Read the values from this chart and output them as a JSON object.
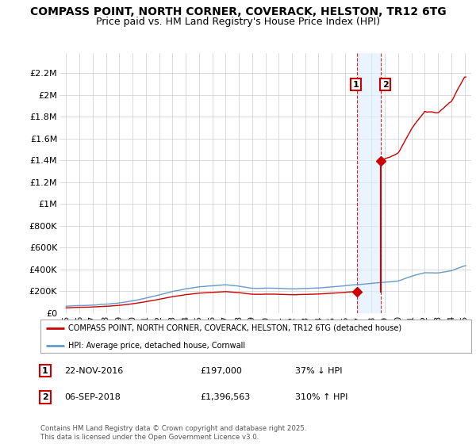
{
  "title": "COMPASS POINT, NORTH CORNER, COVERACK, HELSTON, TR12 6TG",
  "subtitle": "Price paid vs. HM Land Registry's House Price Index (HPI)",
  "title_fontsize": 10,
  "subtitle_fontsize": 9,
  "ylabel_ticks": [
    "£0",
    "£200K",
    "£400K",
    "£600K",
    "£800K",
    "£1M",
    "£1.2M",
    "£1.4M",
    "£1.6M",
    "£1.8M",
    "£2M",
    "£2.2M"
  ],
  "ytick_values": [
    0,
    200000,
    400000,
    600000,
    800000,
    1000000,
    1200000,
    1400000,
    1600000,
    1800000,
    2000000,
    2200000
  ],
  "ylim": [
    0,
    2380000
  ],
  "xlim_start": 1994.5,
  "xlim_end": 2025.5,
  "xtick_years": [
    1995,
    1996,
    1997,
    1998,
    1999,
    2000,
    2001,
    2002,
    2003,
    2004,
    2005,
    2006,
    2007,
    2008,
    2009,
    2010,
    2011,
    2012,
    2013,
    2014,
    2015,
    2016,
    2017,
    2018,
    2019,
    2020,
    2021,
    2022,
    2023,
    2024,
    2025
  ],
  "hpi_color": "#6699cc",
  "sale1_x": 2016.9,
  "sale1_y": 197000,
  "sale2_x": 2018.67,
  "sale2_y": 1396563,
  "property_color": "#cc0000",
  "vline_color": "#cc0000",
  "highlight_color": "#ddeeff",
  "legend_line1": "COMPASS POINT, NORTH CORNER, COVERACK, HELSTON, TR12 6TG (detached house)",
  "legend_line2": "HPI: Average price, detached house, Cornwall",
  "sale1_label": "1",
  "sale2_label": "2",
  "sale1_date": "22-NOV-2016",
  "sale1_price": "£197,000",
  "sale1_hpi": "37% ↓ HPI",
  "sale2_date": "06-SEP-2018",
  "sale2_price": "£1,396,563",
  "sale2_hpi": "310% ↑ HPI",
  "footnote": "Contains HM Land Registry data © Crown copyright and database right 2025.\nThis data is licensed under the Open Government Licence v3.0.",
  "bg_color": "#ffffff",
  "grid_color": "#cccccc"
}
